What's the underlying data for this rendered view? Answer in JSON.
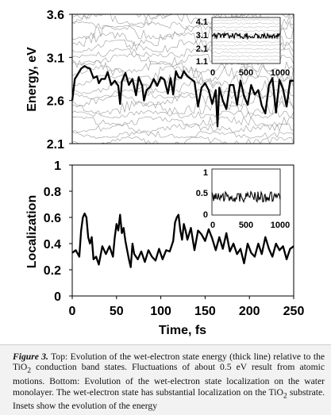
{
  "chart_data": [
    {
      "type": "line",
      "ylabel": "Energy, eV",
      "xlim": [
        0,
        250
      ],
      "ylim": [
        2.1,
        3.6
      ],
      "yticks": [
        "3.6",
        "3.1",
        "2.6",
        "2.1"
      ],
      "series": [
        {
          "style": "thick",
          "x": [
            0,
            3,
            6,
            10,
            14,
            17,
            20,
            24,
            28,
            30,
            33,
            37,
            40,
            44,
            48,
            52,
            54,
            56,
            60,
            64,
            68,
            72,
            75,
            79,
            81,
            84,
            88,
            92,
            96,
            100,
            104,
            108,
            111,
            114,
            117,
            120,
            123,
            126,
            130,
            134,
            138,
            142,
            146,
            150,
            154,
            158,
            162,
            164,
            166,
            170,
            174,
            178,
            182,
            186,
            190,
            194,
            198,
            202,
            206,
            210,
            214,
            218,
            222,
            226,
            230,
            234,
            238,
            242,
            246,
            250
          ],
          "y": [
            2.6,
            2.85,
            2.9,
            2.97,
            3.0,
            2.98,
            2.97,
            2.86,
            2.88,
            2.8,
            2.85,
            2.85,
            2.93,
            2.78,
            2.83,
            2.77,
            2.56,
            2.82,
            2.92,
            2.78,
            2.85,
            2.66,
            2.87,
            2.77,
            2.6,
            2.72,
            2.76,
            2.85,
            2.77,
            2.87,
            2.84,
            2.68,
            2.86,
            2.67,
            2.94,
            2.87,
            2.86,
            2.94,
            2.88,
            2.85,
            2.82,
            2.53,
            2.75,
            2.8,
            2.72,
            2.56,
            2.72,
            2.3,
            2.75,
            2.6,
            2.5,
            2.78,
            2.78,
            2.55,
            2.83,
            2.65,
            2.55,
            2.78,
            2.67,
            2.72,
            2.54,
            2.45,
            2.78,
            2.86,
            2.46,
            2.84,
            2.73,
            2.53,
            2.83,
            2.83
          ]
        }
      ],
      "inset": {
        "xlim": [
          0,
          1000
        ],
        "xticks": [
          "0",
          "500",
          "1000"
        ],
        "yticks": [
          "4.1",
          "3.1",
          "2.1",
          "1.1"
        ]
      }
    },
    {
      "type": "line",
      "xlabel": "Time, fs",
      "ylabel": "Localization",
      "xlim": [
        0,
        250
      ],
      "ylim": [
        0,
        1
      ],
      "xticks": [
        "0",
        "50",
        "100",
        "150",
        "200",
        "250"
      ],
      "yticks": [
        "1",
        "0.8",
        "0.6",
        "0.4",
        "0.2",
        "0"
      ],
      "series": [
        {
          "style": "thick",
          "x": [
            0,
            4,
            8,
            10,
            12,
            14,
            16,
            18,
            20,
            22,
            24,
            27,
            30,
            34,
            38,
            42,
            46,
            48,
            50,
            52,
            54,
            56,
            58,
            60,
            62,
            64,
            66,
            68,
            70,
            74,
            78,
            82,
            86,
            90,
            94,
            98,
            102,
            106,
            110,
            114,
            116,
            118,
            120,
            122,
            124,
            126,
            128,
            130,
            134,
            138,
            142,
            146,
            150,
            154,
            158,
            162,
            166,
            170,
            174,
            178,
            182,
            186,
            190,
            194,
            198,
            202,
            206,
            210,
            214,
            218,
            222,
            226,
            230,
            234,
            238,
            242,
            246,
            250
          ],
          "y": [
            0.33,
            0.35,
            0.3,
            0.5,
            0.6,
            0.63,
            0.6,
            0.45,
            0.4,
            0.45,
            0.28,
            0.3,
            0.24,
            0.38,
            0.32,
            0.38,
            0.3,
            0.45,
            0.55,
            0.5,
            0.62,
            0.48,
            0.52,
            0.42,
            0.35,
            0.28,
            0.22,
            0.4,
            0.32,
            0.28,
            0.34,
            0.26,
            0.35,
            0.3,
            0.27,
            0.36,
            0.28,
            0.35,
            0.34,
            0.42,
            0.56,
            0.6,
            0.62,
            0.5,
            0.43,
            0.55,
            0.5,
            0.43,
            0.52,
            0.35,
            0.5,
            0.47,
            0.42,
            0.51,
            0.44,
            0.35,
            0.45,
            0.36,
            0.48,
            0.34,
            0.4,
            0.32,
            0.36,
            0.25,
            0.4,
            0.33,
            0.3,
            0.4,
            0.32,
            0.45,
            0.36,
            0.3,
            0.4,
            0.35,
            0.38,
            0.28,
            0.36,
            0.38
          ]
        }
      ],
      "inset": {
        "xlim": [
          0,
          1000
        ],
        "xticks": [
          "0",
          "500",
          "1000"
        ],
        "yticks": [
          "1",
          "0.5",
          "0"
        ]
      }
    }
  ],
  "caption": {
    "label": "Figure 3.",
    "text_1": " Top: Evolution of the wet-electron state energy (thick line) relative to the TiO",
    "sub_1": "2",
    "text_2": " conduction band states. Fluctuations of about 0.5 eV result from atomic motions. Bottom: Evolution of the wet-electron state localization on the water monolayer. The wet-electron state has substantial localization on the TiO",
    "sub_2": "2",
    "text_3": " substrate. Insets show the evolution of the energy"
  }
}
